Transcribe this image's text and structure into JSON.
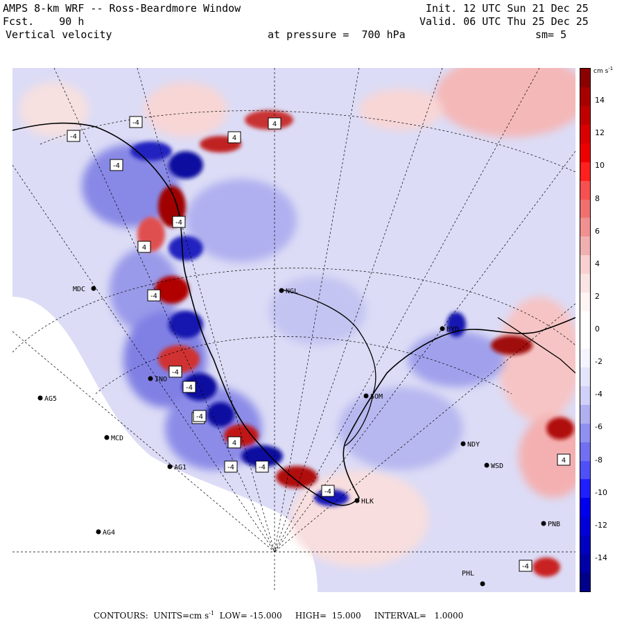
{
  "header": {
    "title": "AMPS 8-km WRF -- Ross-Beardmore Window",
    "fcst_label": "Fcst.",
    "fcst_value": "90 h",
    "field": "Vertical velocity",
    "init": "Init. 12 UTC Sun 21 Dec 25",
    "valid": "Valid. 06 UTC Thu 25 Dec 25",
    "pressure": "at pressure =  700 hPa",
    "smooth": "sm= 5"
  },
  "colorbar": {
    "units": "cm s",
    "units_exp": "-1",
    "ticks": [
      "14",
      "12",
      "10",
      "8",
      "6",
      "4",
      "2",
      "0",
      "-2",
      "-4",
      "-6",
      "-8",
      "-10",
      "-12",
      "-14"
    ],
    "colors": [
      "#8b0000",
      "#a80000",
      "#c00000",
      "#d80000",
      "#ee0000",
      "#ff2020",
      "#f85050",
      "#f07070",
      "#f09090",
      "#f0b0b0",
      "#f8d0d0",
      "#fbe4e4",
      "#fff4f4",
      "#ffffff",
      "#ffffff",
      "#f4f4ff",
      "#e4e4fb",
      "#d0d0f8",
      "#b0b0f0",
      "#9090f0",
      "#7070f0",
      "#5050f8",
      "#2020ff",
      "#0000ee",
      "#0000d8",
      "#0000c0",
      "#0000a8",
      "#00008b"
    ]
  },
  "stations": [
    {
      "id": "MDC"
    },
    {
      "id": "NGL"
    },
    {
      "id": "AG5"
    },
    {
      "id": "MCD"
    },
    {
      "id": "AG1"
    },
    {
      "id": "AG4"
    },
    {
      "id": "SOM"
    },
    {
      "id": "NDY"
    },
    {
      "id": "WSD"
    },
    {
      "id": "HLK"
    },
    {
      "id": "PNB"
    },
    {
      "id": "PHL"
    },
    {
      "id": "INO"
    },
    {
      "id": "BYD"
    }
  ],
  "contour_labels": [
    "-4",
    "-4",
    "4",
    "-4",
    "4",
    "-4",
    "-4",
    "-4",
    "-4",
    "-4",
    "4",
    "-4",
    "-4",
    "-4",
    "-4",
    "4",
    "4",
    "-4"
  ],
  "footer": {
    "label": "CONTOURS:",
    "units_label": "UNITS=cm s",
    "units_exp": "-1",
    "low": "LOW= -15.000",
    "high": "HIGH=  15.000",
    "interval": "INTERVAL=   1.0000"
  }
}
